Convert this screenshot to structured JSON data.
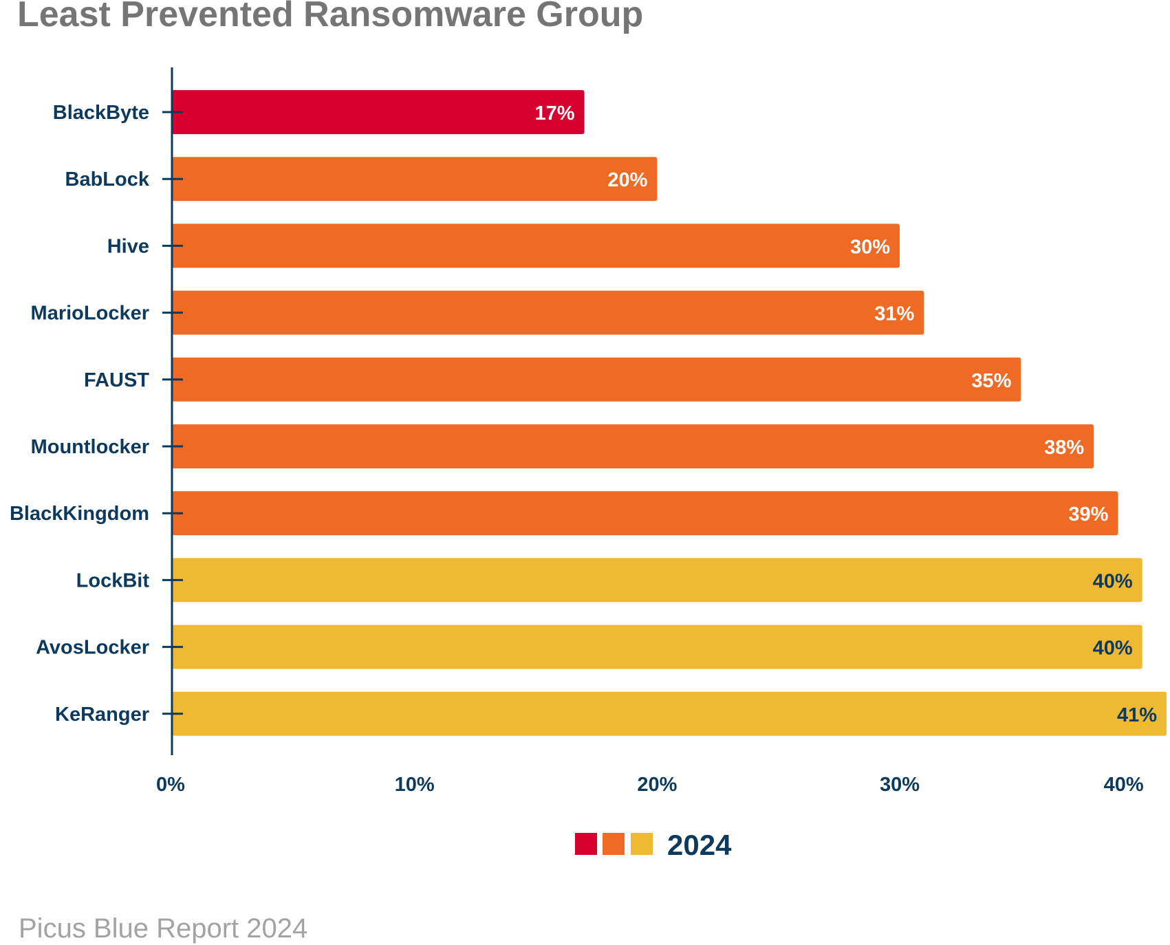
{
  "chart_data": {
    "type": "bar",
    "orientation": "horizontal",
    "title": "Least Prevented Ransomware Group",
    "categories": [
      "BlackByte",
      "BabLock",
      "Hive",
      "MarioLocker",
      "FAUST",
      "Mountlocker",
      "BlackKingdom",
      "LockBit",
      "AvosLocker",
      "KeRanger"
    ],
    "values": [
      17,
      20,
      30,
      31,
      35,
      38,
      39,
      40,
      40,
      41
    ],
    "value_labels": [
      "17%",
      "20%",
      "30%",
      "31%",
      "35%",
      "38%",
      "39%",
      "40%",
      "40%",
      "41%"
    ],
    "bar_colors": [
      "#d6002f",
      "#ee6a25",
      "#ee6a25",
      "#ee6a25",
      "#ee6a25",
      "#ee6a25",
      "#ee6a25",
      "#efb934",
      "#efb934",
      "#efb934"
    ],
    "value_label_colors": [
      "#ffffff",
      "#ffffff",
      "#ffffff",
      "#ffffff",
      "#ffffff",
      "#ffffff",
      "#ffffff",
      "#0d3a5c",
      "#0d3a5c",
      "#0d3a5c"
    ],
    "xlim": [
      0,
      41
    ],
    "xticks": [
      0,
      10,
      20,
      30,
      40
    ],
    "xtick_labels": [
      "0%",
      "10%",
      "20%",
      "30%",
      "40%"
    ],
    "xlabel": "",
    "ylabel": "",
    "grid": false,
    "legend": {
      "placement": "bottom-center",
      "label": "2024",
      "swatch_colors": [
        "#d6002f",
        "#ee6a25",
        "#efb934"
      ]
    }
  },
  "footer": {
    "source": "Picus Blue Report 2024"
  },
  "colors": {
    "axis": "#0d3a5c",
    "title": "#757575",
    "footer": "#a3a3a3"
  }
}
